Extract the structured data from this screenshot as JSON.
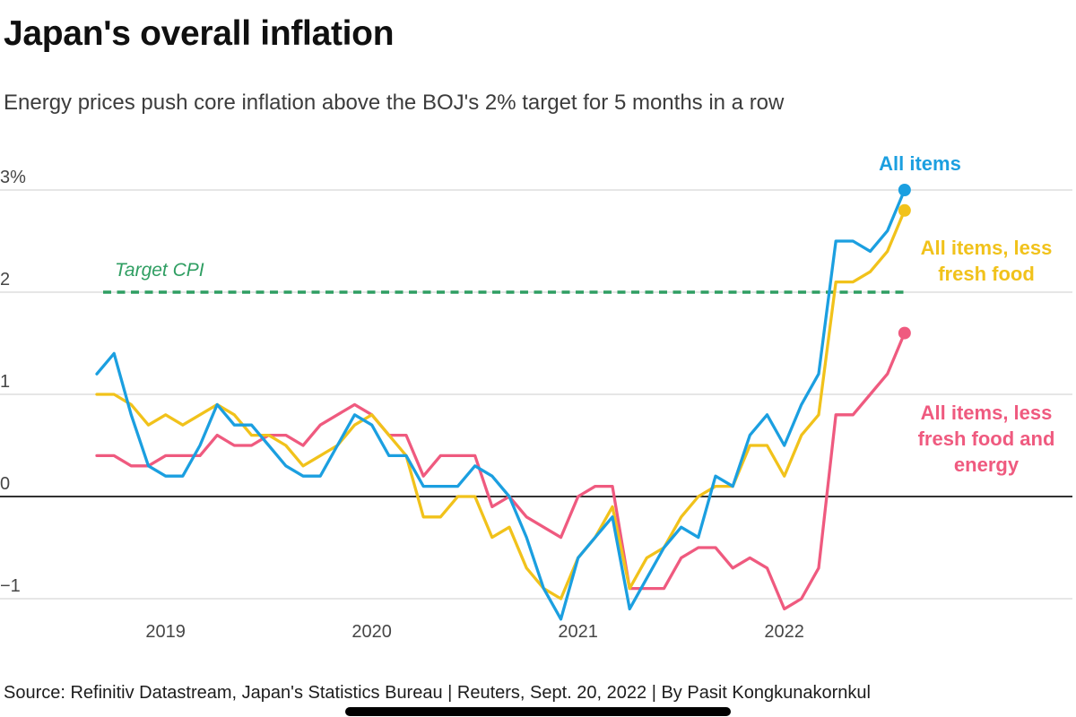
{
  "header": {
    "title": "Japan's overall inflation",
    "subtitle": "Energy prices push core inflation above the BOJ's 2% target for 5 months in a row"
  },
  "footer": {
    "source": "Source: Refinitiv Datastream, Japan's Statistics Bureau | Reuters, Sept. 20, 2022 | By Pasit Kongkunakornkul"
  },
  "chart_data": {
    "type": "line",
    "title": "Japan's overall inflation",
    "frequency": "monthly",
    "x_start": "2018-09",
    "x_end": "2022-08",
    "ylim": [
      -1.5,
      3.3
    ],
    "grid": "horizontal",
    "legend_position": "right-annotations",
    "y_ticks": [
      {
        "value": 3,
        "label": "3%"
      },
      {
        "value": 2,
        "label": "2"
      },
      {
        "value": 1,
        "label": "1"
      },
      {
        "value": 0,
        "label": "0"
      },
      {
        "value": -1,
        "label": "−1"
      }
    ],
    "x_ticks": [
      {
        "month_index": 4,
        "label": "2019"
      },
      {
        "month_index": 16,
        "label": "2020"
      },
      {
        "month_index": 28,
        "label": "2021"
      },
      {
        "month_index": 40,
        "label": "2022"
      }
    ],
    "target_line": {
      "label": "Target CPI",
      "value": 2,
      "color": "#2f9e62",
      "style": "dashed"
    },
    "series": [
      {
        "name": "All items",
        "color": "#1b9fe0",
        "values": [
          1.2,
          1.4,
          0.8,
          0.3,
          0.2,
          0.2,
          0.5,
          0.9,
          0.7,
          0.7,
          0.5,
          0.3,
          0.2,
          0.2,
          0.5,
          0.8,
          0.7,
          0.4,
          0.4,
          0.1,
          0.1,
          0.1,
          0.3,
          0.2,
          0.0,
          -0.4,
          -0.9,
          -1.2,
          -0.6,
          -0.4,
          -0.2,
          -1.1,
          -0.8,
          -0.5,
          -0.3,
          -0.4,
          0.2,
          0.1,
          0.6,
          0.8,
          0.5,
          0.9,
          1.2,
          2.5,
          2.5,
          2.4,
          2.6,
          3.0
        ]
      },
      {
        "name": "All items, less fresh food",
        "color": "#f1c21b",
        "values": [
          1.0,
          1.0,
          0.9,
          0.7,
          0.8,
          0.7,
          0.8,
          0.9,
          0.8,
          0.6,
          0.6,
          0.5,
          0.3,
          0.4,
          0.5,
          0.7,
          0.8,
          0.6,
          0.4,
          -0.2,
          -0.2,
          0.0,
          0.0,
          -0.4,
          -0.3,
          -0.7,
          -0.9,
          -1.0,
          -0.6,
          -0.4,
          -0.1,
          -0.9,
          -0.6,
          -0.5,
          -0.2,
          0.0,
          0.1,
          0.1,
          0.5,
          0.5,
          0.2,
          0.6,
          0.8,
          2.1,
          2.1,
          2.2,
          2.4,
          2.8
        ]
      },
      {
        "name": "All items, less fresh food and energy",
        "color": "#ef5a7f",
        "values": [
          0.4,
          0.4,
          0.3,
          0.3,
          0.4,
          0.4,
          0.4,
          0.6,
          0.5,
          0.5,
          0.6,
          0.6,
          0.5,
          0.7,
          0.8,
          0.9,
          0.8,
          0.6,
          0.6,
          0.2,
          0.4,
          0.4,
          0.4,
          -0.1,
          0.0,
          -0.2,
          -0.3,
          -0.4,
          0.0,
          0.1,
          0.1,
          -0.9,
          -0.9,
          -0.9,
          -0.6,
          -0.5,
          -0.5,
          -0.7,
          -0.6,
          -0.7,
          -1.1,
          -1.0,
          -0.7,
          0.8,
          0.8,
          1.0,
          1.2,
          1.6
        ]
      }
    ]
  }
}
